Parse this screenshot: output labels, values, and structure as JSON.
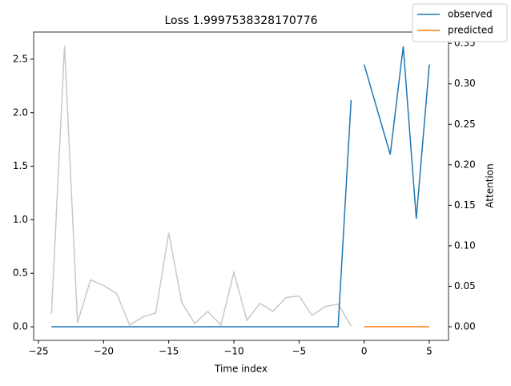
{
  "chart_data": {
    "type": "line",
    "title": "Loss 1.9997538328170776",
    "xlabel": "Time index",
    "y2label": "Attention",
    "xlim": [
      -25.37,
      6.475
    ],
    "ylim": [
      -0.127,
      2.754
    ],
    "y2lim": [
      -0.0168,
      0.364
    ],
    "xticks": [
      {
        "value": -25,
        "label": "−25"
      },
      {
        "value": -20,
        "label": "−20"
      },
      {
        "value": -15,
        "label": "−15"
      },
      {
        "value": -10,
        "label": "−10"
      },
      {
        "value": -5,
        "label": "−5"
      },
      0,
      5
    ],
    "yticks": [
      {
        "value": 0,
        "label": "0.0"
      },
      {
        "value": 0.5,
        "label": "0.5"
      },
      {
        "value": 1,
        "label": "1.0"
      },
      {
        "value": 1.5,
        "label": "1.5"
      },
      {
        "value": 2,
        "label": "2.0"
      },
      {
        "value": 2.5,
        "label": "2.5"
      }
    ],
    "y2ticks": [
      {
        "value": 0,
        "label": "0.00"
      },
      {
        "value": 0.05,
        "label": "0.05"
      },
      {
        "value": 0.1,
        "label": "0.10"
      },
      {
        "value": 0.15,
        "label": "0.15"
      },
      {
        "value": 0.2,
        "label": "0.20"
      },
      {
        "value": 0.25,
        "label": "0.25"
      },
      {
        "value": 0.3,
        "label": "0.30"
      },
      {
        "value": 0.35,
        "label": "0.35"
      }
    ],
    "legend": "upper right",
    "series": [
      {
        "axis": "y2",
        "color": "#c8c8c8",
        "x": [
          -24,
          -23,
          -22,
          -21,
          -20,
          -19,
          -18,
          -17,
          -16,
          -15,
          -14,
          -13,
          -12,
          -11,
          -10,
          -9,
          -8,
          -7,
          -6,
          -5,
          -4,
          -3,
          -2,
          -1
        ],
        "values": [
          0.016,
          0.347,
          0.005,
          0.058,
          0.051,
          0.041,
          0.002,
          0.012,
          0.017,
          0.116,
          0.03,
          0.004,
          0.019,
          0.002,
          0.067,
          0.008,
          0.029,
          0.019,
          0.036,
          0.038,
          0.014,
          0.025,
          0.028,
          0.001
        ]
      },
      {
        "name": "observed",
        "color": "#1f77b4",
        "x": [
          -24,
          -23,
          -22,
          -21,
          -20,
          -19,
          -18,
          -17,
          -16,
          -15,
          -14,
          -13,
          -12,
          -11,
          -10,
          -9,
          -8,
          -7,
          -6,
          -5,
          -4,
          -3,
          -2,
          -1
        ],
        "values": [
          0,
          0,
          0,
          0,
          0,
          0,
          0,
          0,
          0,
          0,
          0,
          0,
          0,
          0,
          0,
          0,
          0,
          0,
          0,
          0,
          0,
          0,
          0,
          2.12
        ]
      },
      {
        "color": "#1f77b4",
        "x": [
          0,
          1,
          2,
          3,
          4,
          5
        ],
        "values": [
          2.45,
          2.03,
          1.61,
          2.62,
          1.01,
          2.45
        ]
      },
      {
        "name": "predicted",
        "color": "#ff7f0e",
        "x": [
          0,
          1,
          2,
          3,
          4,
          5
        ],
        "values": [
          0,
          0,
          0,
          0,
          0,
          0
        ]
      }
    ]
  }
}
